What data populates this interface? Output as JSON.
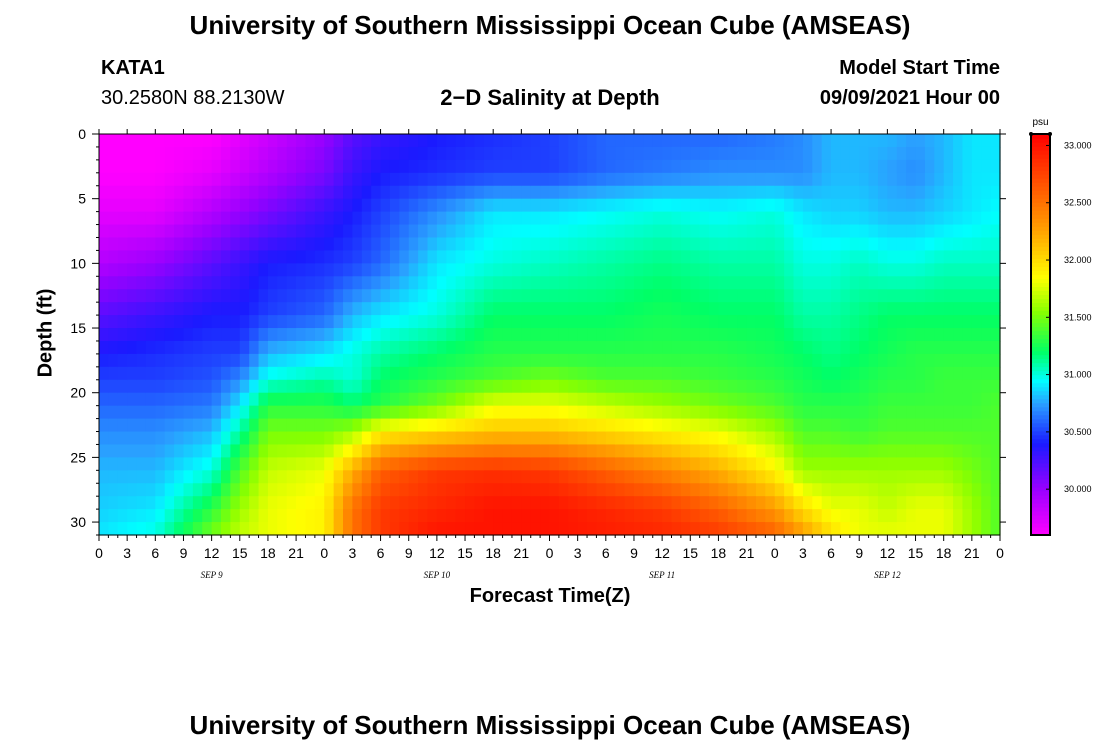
{
  "page": {
    "title_top": "University of Southern Mississippi Ocean Cube (AMSEAS)",
    "title_bottom": "University of Southern Mississippi Ocean Cube (AMSEAS)",
    "station_name": "KATA1",
    "station_coords": "30.2580N  88.2130W",
    "plot_title": "2−D Salinity at Depth",
    "model_start_label": "Model Start Time",
    "model_start_value": "09/09/2021 Hour 00"
  },
  "chart_data": {
    "type": "heatmap",
    "title": "2−D Salinity at Depth",
    "xlabel": "Forecast Time(Z)",
    "ylabel": "Depth (ft)",
    "x_unit": "hours since 09/09/2021 00Z",
    "xlim": [
      0,
      96
    ],
    "ylim": [
      31,
      0
    ],
    "x_tick_labels": [
      "0",
      "3",
      "6",
      "9",
      "12",
      "15",
      "18",
      "21",
      "0",
      "3",
      "6",
      "9",
      "12",
      "15",
      "18",
      "21",
      "0",
      "3",
      "6",
      "9",
      "12",
      "15",
      "18",
      "21",
      "0",
      "3",
      "6",
      "9",
      "12",
      "15",
      "18",
      "21",
      "0"
    ],
    "y_ticks": [
      0,
      5,
      10,
      15,
      20,
      25,
      30
    ],
    "date_labels": [
      {
        "text": "SEP 9",
        "hour": 12
      },
      {
        "text": "SEP 10",
        "hour": 36
      },
      {
        "text": "SEP 11",
        "hour": 60
      },
      {
        "text": "SEP 12",
        "hour": 84
      }
    ],
    "colorbar": {
      "unit": "psu",
      "min": 29.6,
      "max": 33.1,
      "tick_labels": [
        "30.000",
        "30.500",
        "31.000",
        "31.500",
        "32.000",
        "32.500",
        "33.000"
      ],
      "stops": [
        {
          "value": 29.6,
          "color": "#ff00ff"
        },
        {
          "value": 30.0,
          "color": "#9a00ff"
        },
        {
          "value": 30.4,
          "color": "#1a1aff"
        },
        {
          "value": 30.75,
          "color": "#2aa0ff"
        },
        {
          "value": 30.95,
          "color": "#00ffff"
        },
        {
          "value": 31.2,
          "color": "#00ff66"
        },
        {
          "value": 31.55,
          "color": "#88ff00"
        },
        {
          "value": 31.85,
          "color": "#ffff00"
        },
        {
          "value": 32.3,
          "color": "#ff9900"
        },
        {
          "value": 33.1,
          "color": "#ff0000"
        }
      ]
    },
    "depth_levels": [
      0,
      3,
      6,
      10,
      14,
      17,
      19,
      21,
      23,
      26,
      29,
      31
    ],
    "time_hours": [
      0,
      6,
      12,
      15,
      18,
      24,
      27,
      30,
      36,
      42,
      48,
      54,
      60,
      66,
      72,
      75,
      78,
      81,
      84,
      87,
      90,
      93,
      96
    ],
    "salinity_profiles": [
      [
        29.6,
        29.6,
        29.7,
        29.9,
        30.2,
        30.4,
        30.5,
        30.6,
        30.7,
        30.8,
        30.85,
        30.9
      ],
      [
        29.6,
        29.6,
        29.7,
        30.0,
        30.3,
        30.45,
        30.5,
        30.6,
        30.7,
        30.8,
        30.9,
        31.0
      ],
      [
        29.6,
        29.7,
        29.9,
        30.2,
        30.4,
        30.5,
        30.55,
        30.65,
        30.8,
        31.0,
        31.3,
        31.5
      ],
      [
        29.7,
        29.8,
        30.0,
        30.3,
        30.4,
        30.5,
        30.7,
        30.9,
        31.1,
        31.4,
        31.6,
        31.7
      ],
      [
        29.8,
        29.9,
        30.1,
        30.4,
        30.5,
        30.8,
        31.0,
        31.3,
        31.5,
        31.7,
        31.8,
        31.8
      ],
      [
        30.0,
        30.1,
        30.3,
        30.45,
        30.6,
        30.9,
        31.1,
        31.3,
        31.5,
        31.8,
        31.9,
        31.9
      ],
      [
        30.2,
        30.3,
        30.4,
        30.5,
        30.8,
        31.0,
        31.0,
        31.2,
        31.6,
        32.2,
        32.5,
        32.5
      ],
      [
        30.3,
        30.4,
        30.5,
        30.6,
        30.9,
        31.1,
        31.2,
        31.3,
        31.9,
        32.6,
        32.8,
        32.8
      ],
      [
        30.4,
        30.45,
        30.7,
        30.9,
        31.0,
        31.2,
        31.3,
        31.5,
        32.0,
        32.8,
        32.9,
        33.0
      ],
      [
        30.45,
        30.5,
        30.9,
        31.0,
        31.2,
        31.3,
        31.4,
        31.8,
        32.1,
        32.85,
        33.0,
        33.0
      ],
      [
        30.5,
        30.5,
        30.9,
        31.05,
        31.2,
        31.3,
        31.5,
        31.8,
        32.1,
        32.8,
        33.0,
        33.0
      ],
      [
        30.6,
        30.6,
        30.95,
        31.1,
        31.2,
        31.3,
        31.4,
        31.7,
        32.0,
        32.6,
        32.9,
        32.95
      ],
      [
        30.6,
        30.65,
        31.0,
        31.15,
        31.25,
        31.3,
        31.4,
        31.6,
        31.9,
        32.4,
        32.8,
        32.9
      ],
      [
        30.6,
        30.7,
        30.95,
        31.1,
        31.2,
        31.3,
        31.35,
        31.5,
        31.8,
        32.2,
        32.6,
        32.8
      ],
      [
        30.65,
        30.7,
        31.0,
        31.1,
        31.2,
        31.25,
        31.3,
        31.4,
        31.6,
        31.9,
        32.3,
        32.6
      ],
      [
        30.7,
        30.7,
        30.9,
        31.0,
        31.1,
        31.2,
        31.25,
        31.3,
        31.4,
        31.6,
        32.0,
        32.3
      ],
      [
        30.8,
        30.8,
        30.85,
        31.0,
        31.1,
        31.15,
        31.2,
        31.3,
        31.4,
        31.6,
        31.8,
        32.0
      ],
      [
        30.8,
        30.8,
        30.85,
        31.05,
        31.15,
        31.2,
        31.25,
        31.3,
        31.35,
        31.6,
        31.8,
        31.8
      ],
      [
        30.8,
        30.75,
        30.8,
        31.0,
        31.2,
        31.25,
        31.3,
        31.35,
        31.4,
        31.6,
        31.7,
        31.8
      ],
      [
        30.75,
        30.7,
        30.8,
        31.0,
        31.2,
        31.3,
        31.3,
        31.35,
        31.4,
        31.6,
        31.8,
        31.8
      ],
      [
        30.8,
        30.8,
        30.85,
        31.05,
        31.2,
        31.3,
        31.35,
        31.35,
        31.4,
        31.6,
        31.8,
        31.8
      ],
      [
        30.9,
        30.9,
        30.9,
        31.05,
        31.2,
        31.3,
        31.35,
        31.35,
        31.4,
        31.5,
        31.6,
        31.6
      ],
      [
        30.9,
        30.9,
        30.95,
        31.05,
        31.2,
        31.3,
        31.35,
        31.4,
        31.4,
        31.4,
        31.4,
        31.4
      ]
    ]
  }
}
